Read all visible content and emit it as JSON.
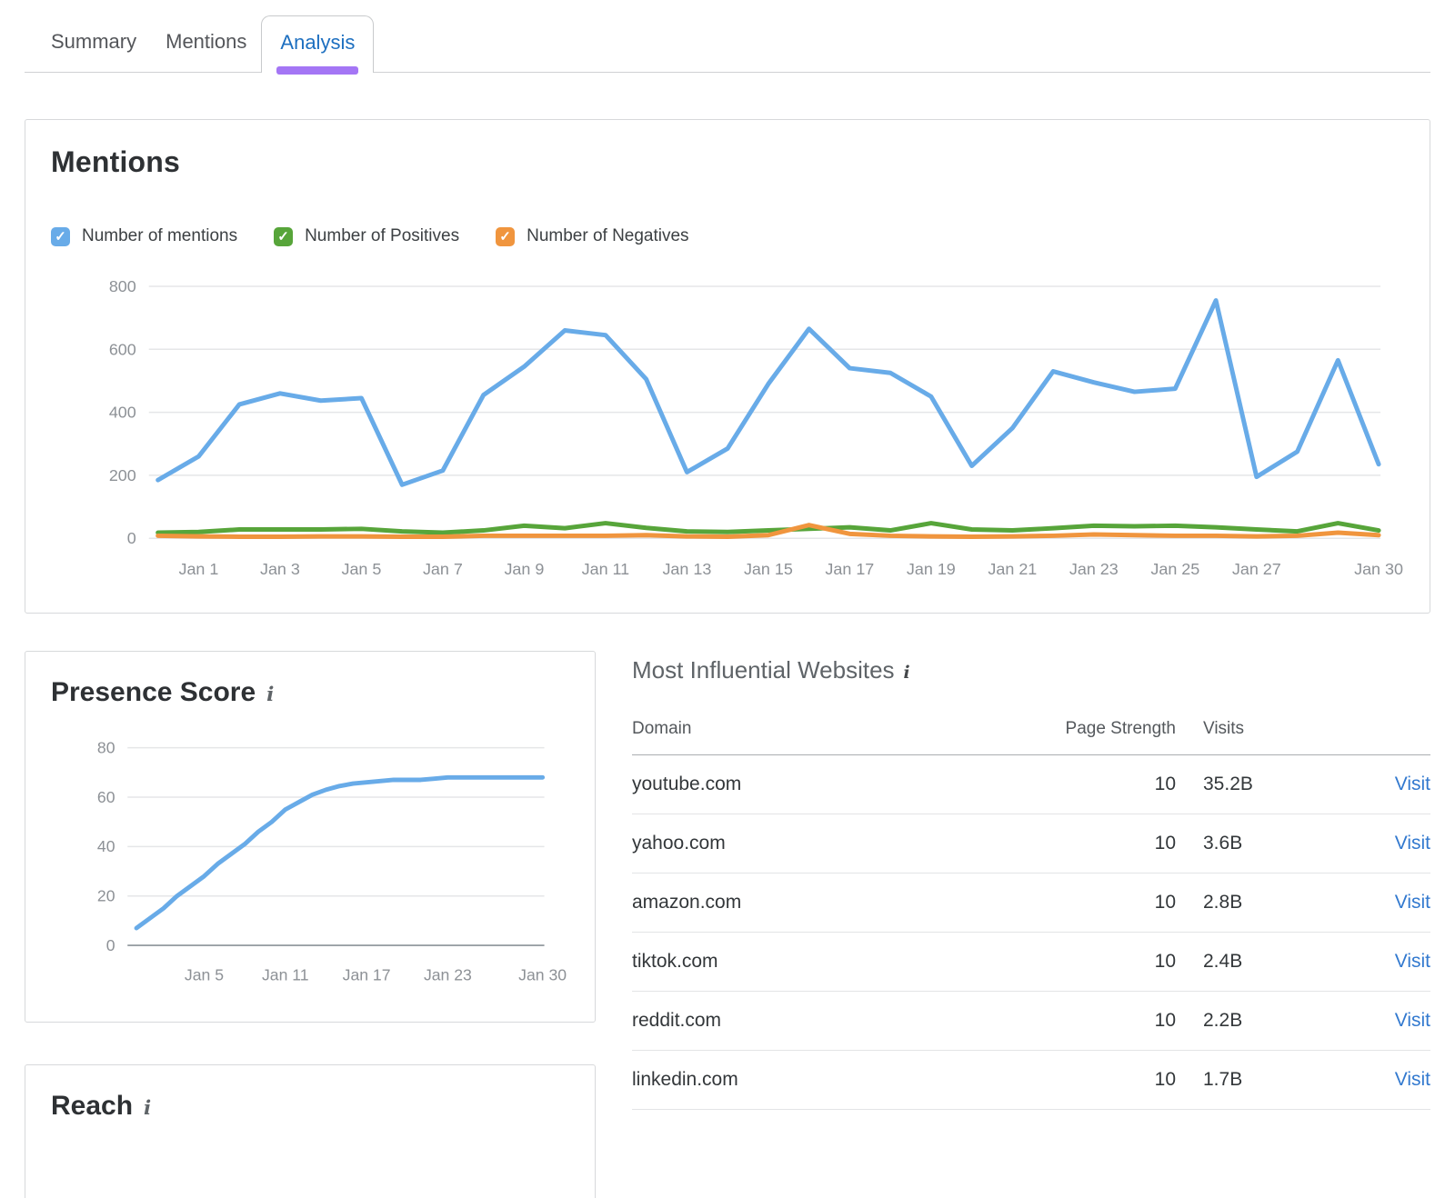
{
  "tabs": [
    {
      "label": "Summary",
      "active": false
    },
    {
      "label": "Mentions",
      "active": false
    },
    {
      "label": "Analysis",
      "active": true
    }
  ],
  "mentions_card": {
    "title": "Mentions"
  },
  "presence_card": {
    "title": "Presence Score",
    "info_icon": "i"
  },
  "reach_card": {
    "title": "Reach",
    "info_icon": "i"
  },
  "influential": {
    "title": "Most Influential Websites",
    "info_icon": "i",
    "columns": [
      "Domain",
      "Page Strength",
      "Visits"
    ],
    "visit_label": "Visit",
    "rows": [
      {
        "domain": "youtube.com",
        "page_strength": 10,
        "visits": "35.2B"
      },
      {
        "domain": "yahoo.com",
        "page_strength": 10,
        "visits": "3.6B"
      },
      {
        "domain": "amazon.com",
        "page_strength": 10,
        "visits": "2.8B"
      },
      {
        "domain": "tiktok.com",
        "page_strength": 10,
        "visits": "2.4B"
      },
      {
        "domain": "reddit.com",
        "page_strength": 10,
        "visits": "2.2B"
      },
      {
        "domain": "linkedin.com",
        "page_strength": 10,
        "visits": "1.7B"
      }
    ]
  },
  "colors": {
    "accent_purple": "#a476f5",
    "tab_active_blue": "#1d6fc0",
    "link_blue": "#3279cf",
    "line_blue": "#68abe8",
    "line_green": "#57a53a",
    "line_orange": "#f0953e",
    "grid": "#e5e6e8",
    "axis_label": "#8d9196"
  },
  "chart_data": [
    {
      "type": "line",
      "title": "Mentions",
      "categories": [
        "Dec 31",
        "Jan 1",
        "Jan 2",
        "Jan 3",
        "Jan 4",
        "Jan 5",
        "Jan 6",
        "Jan 7",
        "Jan 8",
        "Jan 9",
        "Jan 10",
        "Jan 11",
        "Jan 12",
        "Jan 13",
        "Jan 14",
        "Jan 15",
        "Jan 16",
        "Jan 17",
        "Jan 18",
        "Jan 19",
        "Jan 20",
        "Jan 21",
        "Jan 22",
        "Jan 23",
        "Jan 24",
        "Jan 25",
        "Jan 26",
        "Jan 27",
        "Jan 28",
        "Jan 29",
        "Jan 30"
      ],
      "x_tick_labels": [
        "Jan 1",
        "Jan 3",
        "Jan 5",
        "Jan 7",
        "Jan 9",
        "Jan 11",
        "Jan 13",
        "Jan 15",
        "Jan 17",
        "Jan 19",
        "Jan 21",
        "Jan 23",
        "Jan 25",
        "Jan 27",
        "Jan 30"
      ],
      "x_tick_indices": [
        1,
        3,
        5,
        7,
        9,
        11,
        13,
        15,
        17,
        19,
        21,
        23,
        25,
        27,
        30
      ],
      "ylim": [
        0,
        800
      ],
      "yticks": [
        0,
        200,
        400,
        600,
        800
      ],
      "grid": true,
      "legend_position": "top",
      "series": [
        {
          "name": "Number of mentions",
          "color": "#68abe8",
          "checked": true,
          "values": [
            185,
            260,
            425,
            460,
            437,
            445,
            170,
            215,
            455,
            545,
            660,
            645,
            505,
            210,
            285,
            490,
            665,
            540,
            525,
            450,
            230,
            350,
            530,
            495,
            465,
            475,
            755,
            195,
            275,
            565,
            235
          ]
        },
        {
          "name": "Number of Positives",
          "color": "#57a53a",
          "checked": true,
          "values": [
            18,
            20,
            28,
            28,
            28,
            30,
            22,
            18,
            25,
            40,
            32,
            48,
            33,
            22,
            20,
            25,
            30,
            35,
            25,
            48,
            28,
            25,
            32,
            40,
            38,
            40,
            35,
            28,
            22,
            48,
            25
          ]
        },
        {
          "name": "Number of Negatives",
          "color": "#f0953e",
          "checked": true,
          "values": [
            8,
            6,
            5,
            5,
            6,
            6,
            5,
            5,
            8,
            8,
            8,
            8,
            10,
            6,
            5,
            10,
            42,
            14,
            8,
            6,
            5,
            6,
            8,
            12,
            10,
            8,
            8,
            6,
            8,
            18,
            10
          ]
        }
      ]
    },
    {
      "type": "line",
      "title": "Presence Score",
      "categories": [
        "Dec 31",
        "Jan 1",
        "Jan 2",
        "Jan 3",
        "Jan 4",
        "Jan 5",
        "Jan 6",
        "Jan 7",
        "Jan 8",
        "Jan 9",
        "Jan 10",
        "Jan 11",
        "Jan 12",
        "Jan 13",
        "Jan 14",
        "Jan 15",
        "Jan 16",
        "Jan 17",
        "Jan 18",
        "Jan 19",
        "Jan 20",
        "Jan 21",
        "Jan 22",
        "Jan 23",
        "Jan 24",
        "Jan 25",
        "Jan 26",
        "Jan 27",
        "Jan 28",
        "Jan 29",
        "Jan 30"
      ],
      "x_tick_labels": [
        "Jan 5",
        "Jan 11",
        "Jan 17",
        "Jan 23",
        "Jan 30"
      ],
      "x_tick_indices": [
        5,
        11,
        17,
        23,
        30
      ],
      "ylim": [
        0,
        80
      ],
      "yticks": [
        0,
        20,
        40,
        60,
        80
      ],
      "grid": true,
      "legend_position": "none",
      "series": [
        {
          "name": "Presence Score",
          "color": "#68abe8",
          "values": [
            7,
            11,
            15,
            20,
            24,
            28,
            33,
            37,
            41,
            46,
            50,
            55,
            58,
            61,
            63,
            64.5,
            65.5,
            66,
            66.5,
            67,
            67,
            67,
            67.5,
            68,
            68,
            68,
            68,
            68,
            68,
            68,
            68
          ]
        }
      ]
    }
  ]
}
